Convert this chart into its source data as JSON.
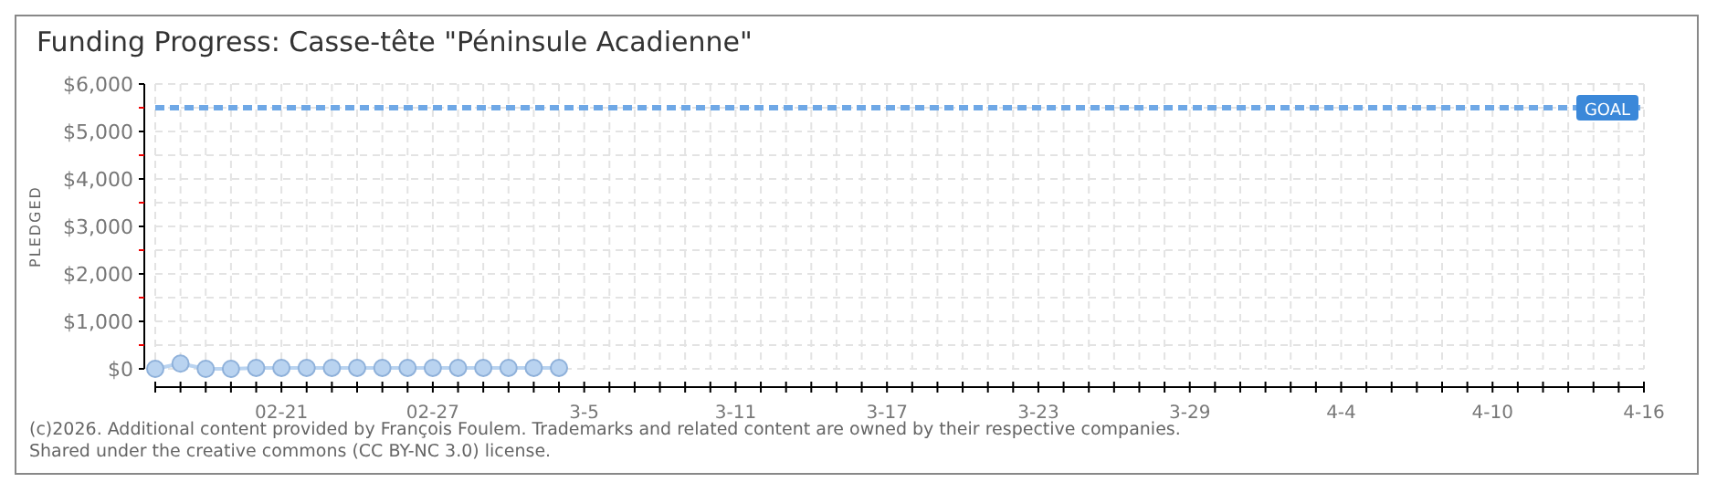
{
  "chart_data": {
    "type": "line",
    "title": "Funding Progress: Casse-tête \"Péninsule Acadienne\"",
    "ylabel": "PLEDGED",
    "x": [
      "2026-02-16",
      "2026-02-17",
      "2026-02-18",
      "2026-02-19",
      "2026-02-20",
      "2026-02-21",
      "2026-02-22",
      "2026-02-23",
      "2026-02-24",
      "2026-02-25",
      "2026-02-26",
      "2026-02-27",
      "2026-02-28",
      "2026-03-01",
      "2026-03-02",
      "2026-03-03",
      "2026-03-04"
    ],
    "series": [
      {
        "color": "#b9d3f0",
        "values": [
          0,
          110,
          0,
          0,
          20,
          20,
          20,
          20,
          20,
          20,
          20,
          20,
          20,
          20,
          20,
          20,
          20
        ]
      }
    ],
    "marker": "circle",
    "grid": true,
    "xlim": [
      "2026-02-16",
      "2026-04-16"
    ],
    "xticks": [
      {
        "value": "2026-02-16",
        "label": null
      },
      {
        "value": "2026-02-17",
        "label": null
      },
      {
        "value": "2026-02-18",
        "label": null
      },
      {
        "value": "2026-02-19",
        "label": null
      },
      {
        "value": "2026-02-20",
        "label": null
      },
      {
        "value": "2026-02-21",
        "label": "02-21"
      },
      {
        "value": "2026-02-22",
        "label": null
      },
      {
        "value": "2026-02-23",
        "label": null
      },
      {
        "value": "2026-02-24",
        "label": null
      },
      {
        "value": "2026-02-25",
        "label": null
      },
      {
        "value": "2026-02-26",
        "label": null
      },
      {
        "value": "2026-02-27",
        "label": "02-27"
      },
      {
        "value": "2026-02-28",
        "label": null
      },
      {
        "value": "2026-03-01",
        "label": null
      },
      {
        "value": "2026-03-02",
        "label": null
      },
      {
        "value": "2026-03-03",
        "label": null
      },
      {
        "value": "2026-03-04",
        "label": null
      },
      {
        "value": "2026-03-05",
        "label": "3-5"
      },
      {
        "value": "2026-03-06",
        "label": null
      },
      {
        "value": "2026-03-07",
        "label": null
      },
      {
        "value": "2026-03-08",
        "label": null
      },
      {
        "value": "2026-03-09",
        "label": null
      },
      {
        "value": "2026-03-10",
        "label": null
      },
      {
        "value": "2026-03-11",
        "label": "3-11"
      },
      {
        "value": "2026-03-12",
        "label": null
      },
      {
        "value": "2026-03-13",
        "label": null
      },
      {
        "value": "2026-03-14",
        "label": null
      },
      {
        "value": "2026-03-15",
        "label": null
      },
      {
        "value": "2026-03-16",
        "label": null
      },
      {
        "value": "2026-03-17",
        "label": "3-17"
      },
      {
        "value": "2026-03-18",
        "label": null
      },
      {
        "value": "2026-03-19",
        "label": null
      },
      {
        "value": "2026-03-20",
        "label": null
      },
      {
        "value": "2026-03-21",
        "label": null
      },
      {
        "value": "2026-03-22",
        "label": null
      },
      {
        "value": "2026-03-23",
        "label": "3-23"
      },
      {
        "value": "2026-03-24",
        "label": null
      },
      {
        "value": "2026-03-25",
        "label": null
      },
      {
        "value": "2026-03-26",
        "label": null
      },
      {
        "value": "2026-03-27",
        "label": null
      },
      {
        "value": "2026-03-28",
        "label": null
      },
      {
        "value": "2026-03-29",
        "label": "3-29"
      },
      {
        "value": "2026-03-30",
        "label": null
      },
      {
        "value": "2026-03-31",
        "label": null
      },
      {
        "value": "2026-04-01",
        "label": null
      },
      {
        "value": "2026-04-02",
        "label": null
      },
      {
        "value": "2026-04-03",
        "label": null
      },
      {
        "value": "2026-04-04",
        "label": "4-4"
      },
      {
        "value": "2026-04-05",
        "label": null
      },
      {
        "value": "2026-04-06",
        "label": null
      },
      {
        "value": "2026-04-07",
        "label": null
      },
      {
        "value": "2026-04-08",
        "label": null
      },
      {
        "value": "2026-04-09",
        "label": null
      },
      {
        "value": "2026-04-10",
        "label": "4-10"
      },
      {
        "value": "2026-04-11",
        "label": null
      },
      {
        "value": "2026-04-12",
        "label": null
      },
      {
        "value": "2026-04-13",
        "label": null
      },
      {
        "value": "2026-04-14",
        "label": null
      },
      {
        "value": "2026-04-15",
        "label": null
      },
      {
        "value": "2026-04-16",
        "label": "4-16"
      }
    ],
    "ylim": [
      0,
      6000
    ],
    "yticks": [
      {
        "value": 0,
        "label": "$0"
      },
      {
        "value": 500,
        "label": null
      },
      {
        "value": 1000,
        "label": "$1,000"
      },
      {
        "value": 1500,
        "label": null
      },
      {
        "value": 2000,
        "label": "$2,000"
      },
      {
        "value": 2500,
        "label": null
      },
      {
        "value": 3000,
        "label": "$3,000"
      },
      {
        "value": 3500,
        "label": null
      },
      {
        "value": 4000,
        "label": "$4,000"
      },
      {
        "value": 4500,
        "label": null
      },
      {
        "value": 5000,
        "label": "$5,000"
      },
      {
        "value": 5500,
        "label": null
      },
      {
        "value": 6000,
        "label": "$6,000"
      }
    ],
    "ref_lines": [
      {
        "axis": "y",
        "value": 5500,
        "label": "GOAL",
        "color": "#6fa8e6",
        "line_style": "dashed"
      }
    ],
    "annotations": [
      "(c)2026. Additional content provided by François Foulem. Trademarks and related content are owned by their respective companies.",
      "Shared under the creative commons (CC BY-NC 3.0) license."
    ]
  }
}
